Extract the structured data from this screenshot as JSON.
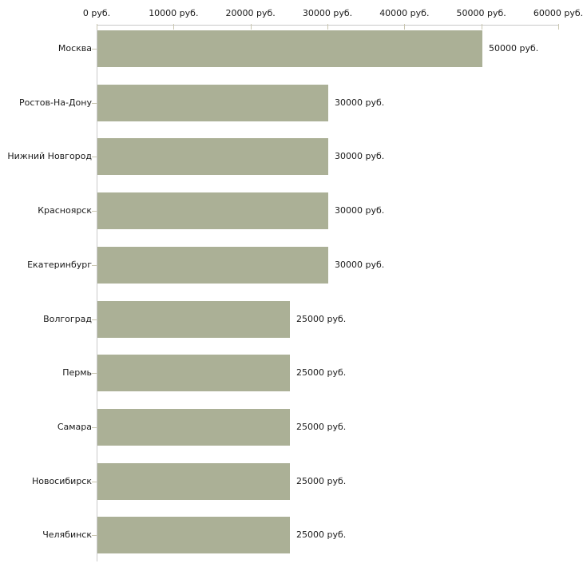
{
  "chart_data": {
    "type": "bar",
    "orientation": "horizontal",
    "title": "",
    "xlabel": "",
    "ylabel": "",
    "grid": false,
    "legend": false,
    "categories": [
      "Москва",
      "Ростов-На-Дону",
      "Нижний Новгород",
      "Красноярск",
      "Екатеринбург",
      "Волгоград",
      "Пермь",
      "Самара",
      "Новосибирск",
      "Челябинск"
    ],
    "values": [
      50000,
      30000,
      30000,
      30000,
      30000,
      25000,
      25000,
      25000,
      25000,
      25000
    ],
    "value_labels": [
      "50000 руб.",
      "30000 руб.",
      "30000 руб.",
      "30000 руб.",
      "30000 руб.",
      "25000 руб.",
      "25000 руб.",
      "25000 руб.",
      "25000 руб.",
      "25000 руб."
    ],
    "x_axis": {
      "position": "top",
      "min": 0,
      "max": 60000,
      "tick_step": 10000,
      "tick_labels": [
        "0 руб.",
        "10000 руб.",
        "20000 руб.",
        "30000 руб.",
        "40000 руб.",
        "50000 руб.",
        "60000 руб."
      ]
    },
    "colors": {
      "bar_fill": "#abb096",
      "axis_line": "#c9c9c9",
      "tick_mark": "#c9c6b0",
      "label_text": "#1a1a1a"
    }
  }
}
